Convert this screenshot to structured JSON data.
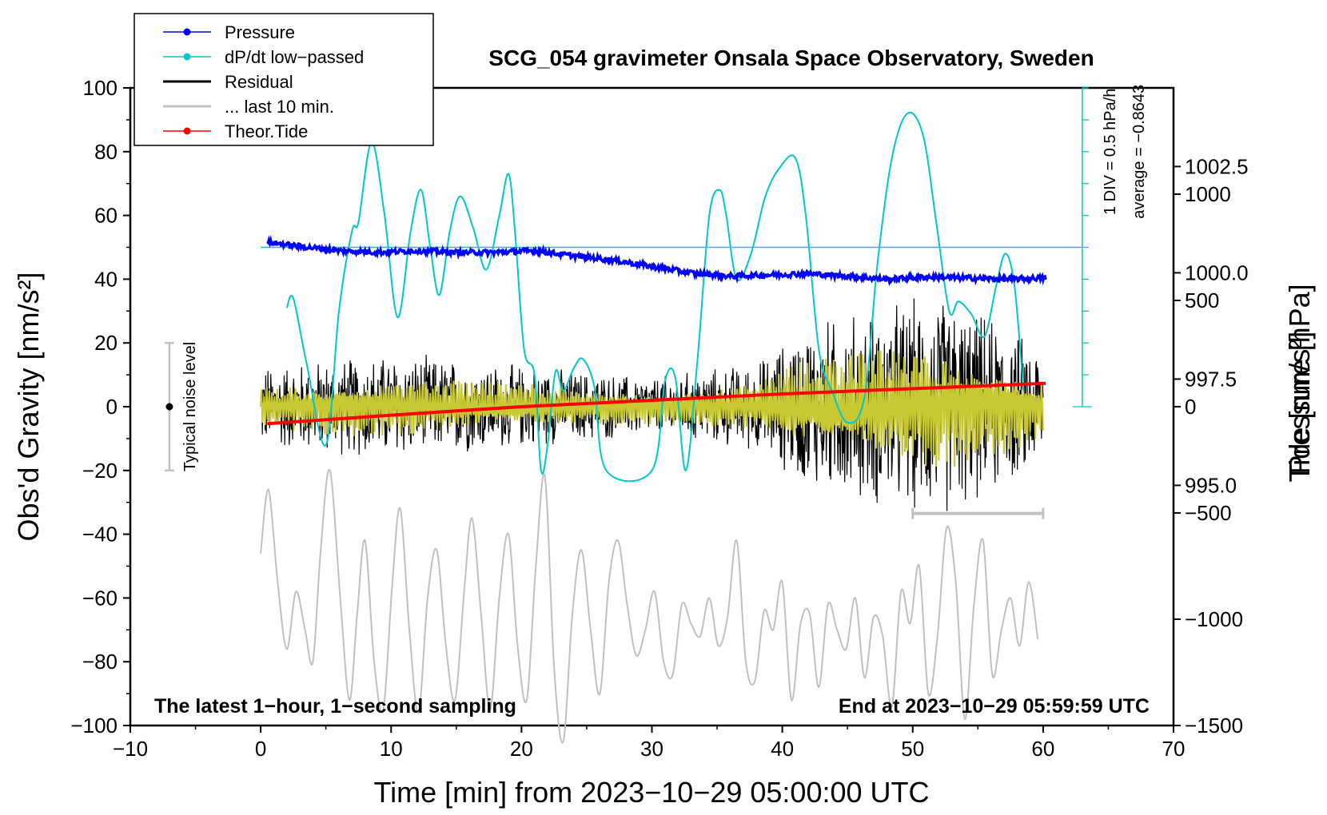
{
  "chart_data": {
    "type": "line",
    "title": "SCG_054 gravimeter Onsala Space Observatory, Sweden",
    "xlabel": "Time [min] from 2023−10−29 05:00:00 UTC",
    "ylabel_left": "Obs'd Gravity [nm/s²]",
    "ylabel_right_top": "Pressure [hPa]",
    "ylabel_right_bottom": "Tide [nm/s²]",
    "xlim": [
      -10,
      70
    ],
    "ylim": [
      -100,
      100
    ],
    "pressure_lim": [
      989.35,
      1004.35
    ],
    "tide_lim": [
      -1500,
      1500
    ],
    "x_ticks": [
      "−10",
      "0",
      "10",
      "20",
      "30",
      "40",
      "50",
      "60",
      "70"
    ],
    "x_tick_values": [
      -10,
      0,
      10,
      20,
      30,
      40,
      50,
      60,
      70
    ],
    "y_ticks": [
      "−100",
      "−80",
      "−60",
      "−40",
      "−20",
      "0",
      "20",
      "40",
      "60",
      "80",
      "100"
    ],
    "y_tick_values": [
      -100,
      -80,
      -60,
      -40,
      -20,
      0,
      20,
      40,
      60,
      80,
      100
    ],
    "pressure_ticks": [
      "995.0",
      "997.5",
      "1000.0",
      "1002.5"
    ],
    "pressure_tick_values": [
      995.0,
      997.5,
      1000.0,
      1002.5
    ],
    "tide_ticks": [
      "−1500",
      "−1000",
      "−500",
      "0",
      "500",
      "1000"
    ],
    "tide_tick_values": [
      -1500,
      -1000,
      -500,
      0,
      500,
      1000
    ],
    "bottom_left_text": "The latest 1−hour, 1−second sampling",
    "bottom_right_text": "End at 2023−10−29 05:59:59 UTC",
    "noise_label": "Typical noise level",
    "noise_bar": {
      "x": -7,
      "center": 0,
      "half_range": 20
    },
    "div_label": "1 DIV = 0.5 hPa/h",
    "average_label": "average = −0.8643",
    "dpdt_baseline_y": 50,
    "last10_bar": {
      "x_start": 50,
      "x_end": 60,
      "y": -33.5
    },
    "legend": [
      {
        "label": "Pressure",
        "color": "#0000ff",
        "marker": true
      },
      {
        "label": "dP/dt low−passed",
        "color": "#00c8c8",
        "marker": true
      },
      {
        "label": "Residual",
        "color": "#000000",
        "marker": false
      },
      {
        "label": "... last 10 min.",
        "color": "#c0c0c0",
        "marker": false
      },
      {
        "label": "Theor.Tide",
        "color": "#ff0000",
        "marker": true
      }
    ],
    "colors": {
      "pressure": "#0000ff",
      "dpdt": "#00c8c8",
      "residual": "#000000",
      "residual_filtered": "#c8c832",
      "last10": "#c0c0c0",
      "tide": "#ff0000"
    },
    "series": [
      {
        "name": "Pressure",
        "axis": "pressure",
        "x": [
          0.5,
          3,
          6,
          9,
          12,
          15,
          18,
          21,
          24,
          27,
          30,
          33,
          36,
          39,
          42,
          45,
          48,
          51,
          54,
          57,
          60.2
        ],
        "values": [
          1000.72,
          1000.62,
          1000.52,
          1000.48,
          1000.52,
          1000.48,
          1000.48,
          1000.52,
          1000.4,
          1000.3,
          1000.15,
          1000.0,
          999.92,
          999.95,
          999.98,
          999.92,
          999.85,
          999.9,
          999.88,
          999.85,
          999.88
        ]
      },
      {
        "name": "dP/dt low−passed",
        "axis": "left",
        "x": [
          2,
          2.5,
          3.5,
          5,
          6,
          7,
          7.5,
          8.5,
          9.5,
          10.5,
          11.5,
          12.3,
          13,
          13.7,
          14.5,
          15.3,
          16.3,
          17.3,
          18.3,
          19,
          19.5,
          20.2,
          21,
          21.5,
          22,
          22.6,
          23.2,
          24,
          24.7,
          25.6,
          26.5,
          30,
          31,
          31.8,
          32.6,
          33.5,
          34.4,
          35.2,
          35.7,
          36.5,
          37.6,
          38.7,
          39.8,
          41,
          41.8,
          42.8,
          43.8,
          45,
          46.3,
          47.3,
          48.4,
          49.6,
          50.8,
          51.8,
          52.8,
          53.5,
          54.5,
          55.5,
          56.4,
          57.1,
          57.8,
          58.5
        ],
        "values": [
          31,
          34,
          14,
          -12,
          30,
          55,
          58,
          83,
          60,
          28,
          55,
          68,
          50,
          35,
          55,
          66,
          56,
          43,
          60,
          73,
          55,
          18,
          10,
          -20,
          -12,
          11,
          5,
          12,
          15,
          6,
          -20,
          -20,
          8,
          9,
          -20,
          15,
          60,
          68,
          60,
          40,
          48,
          66,
          75,
          78,
          60,
          18,
          5,
          -5,
          3,
          45,
          78,
          92,
          85,
          58,
          30,
          33,
          29,
          22,
          38,
          48,
          38,
          5
        ]
      },
      {
        "name": "Theor.Tide",
        "axis": "tide",
        "x": [
          0.5,
          10,
          20,
          30,
          40,
          50,
          60.2
        ],
        "values": [
          -80,
          -40,
          0,
          30,
          60,
          85,
          110
        ]
      },
      {
        "name": "... last 10 min.",
        "axis": "left",
        "x": [
          0,
          0.6,
          1.3,
          2,
          2.7,
          3.4,
          4,
          4.6,
          5.3,
          6.1,
          6.8,
          7.4,
          8,
          8.7,
          9.4,
          10.1,
          10.7,
          11.4,
          12.1,
          12.8,
          13.5,
          14.2,
          14.9,
          15.6,
          16.2,
          16.9,
          17.6,
          18.3,
          19,
          19.7,
          20.4,
          21.1,
          21.8,
          22.5,
          23.2,
          23.9,
          24.6,
          25.3,
          26,
          26.7,
          27.4,
          28.1,
          28.8,
          29.5,
          30.2,
          30.9,
          31.6,
          32.3,
          33,
          33.7,
          34.4,
          35.1,
          35.8,
          36.5,
          37.2,
          37.9,
          38.6,
          39.3,
          40,
          40.7,
          41.4,
          42.1,
          42.8,
          43.5,
          44.2,
          44.9,
          45.6,
          46.3,
          47,
          47.7,
          48.4,
          49.1,
          49.8,
          50.5,
          51.2,
          51.9,
          52.6,
          53.3,
          54,
          54.7,
          55.4,
          56.1,
          56.8,
          57.5,
          58.2,
          58.9,
          59.6
        ],
        "values": [
          -46,
          -26,
          -55,
          -76,
          -58,
          -70,
          -80,
          -45,
          -20,
          -60,
          -92,
          -65,
          -42,
          -80,
          -95,
          -55,
          -32,
          -70,
          -96,
          -60,
          -45,
          -75,
          -92,
          -58,
          -35,
          -65,
          -95,
          -60,
          -40,
          -75,
          -92,
          -50,
          -22,
          -82,
          -105,
          -65,
          -45,
          -70,
          -90,
          -55,
          -42,
          -62,
          -78,
          -70,
          -58,
          -80,
          -84,
          -62,
          -68,
          -72,
          -60,
          -75,
          -66,
          -42,
          -80,
          -86,
          -64,
          -70,
          -55,
          -92,
          -68,
          -65,
          -88,
          -62,
          -70,
          -76,
          -60,
          -85,
          -66,
          -72,
          -94,
          -58,
          -68,
          -50,
          -90,
          -72,
          -38,
          -55,
          -98,
          -62,
          -42,
          -84,
          -70,
          -60,
          -75,
          -55,
          -73
        ]
      },
      {
        "name": "Residual",
        "axis": "left",
        "x_range": [
          0,
          60
        ],
        "envelope": {
          "x": [
            0,
            10,
            20,
            30,
            38,
            42,
            48,
            52,
            56,
            60
          ],
          "amplitude": [
            14,
            18,
            14,
            10,
            15,
            28,
            35,
            38,
            30,
            20
          ]
        }
      }
    ]
  }
}
